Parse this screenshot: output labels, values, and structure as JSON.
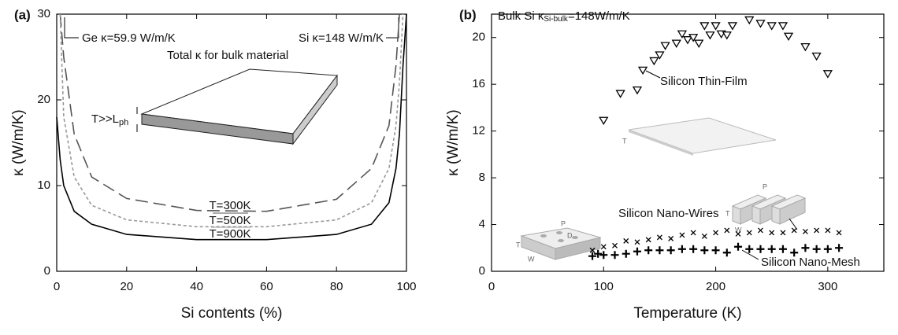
{
  "chart_data": [
    {
      "type": "line",
      "title": "(a)",
      "x_label": "Si contents (%)",
      "y_label": "κ (W/m/K)",
      "x": [
        0,
        1,
        2,
        5,
        10,
        20,
        40,
        60,
        80,
        90,
        95,
        97,
        98,
        99,
        100
      ],
      "series": [
        {
          "name": "T=300K",
          "color": "#555555",
          "style": "long-dash",
          "values": [
            null,
            30,
            25,
            16,
            11,
            8.5,
            7.1,
            7,
            8.4,
            12,
            17,
            24,
            30,
            null,
            null
          ]
        },
        {
          "name": "T=500K",
          "color": "#999999",
          "style": "short-dash",
          "values": [
            null,
            30,
            18,
            11,
            7.7,
            6,
            5.2,
            5.2,
            6,
            8,
            12,
            17,
            22,
            30,
            null
          ]
        },
        {
          "name": "T=900K",
          "color": "#000000",
          "style": "solid",
          "values": [
            18,
            13,
            10,
            7,
            5.5,
            4.3,
            3.7,
            3.7,
            4.3,
            5.5,
            8,
            12,
            16,
            24,
            30
          ]
        }
      ],
      "xlim": [
        0,
        100
      ],
      "ylim": [
        0,
        30
      ],
      "xticks": [
        0,
        20,
        40,
        60,
        80,
        100
      ],
      "yticks": [
        0,
        10,
        20,
        30
      ],
      "grid": false,
      "annotations": [
        "Ge κ=59.9 W/m/K",
        "Si κ=148 W/m/K",
        "Total κ for bulk material",
        {
          "text": "T>>L",
          "subscript": "ph"
        }
      ]
    },
    {
      "type": "scatter",
      "title": "(b)",
      "x_label": "Temperature (K)",
      "y_label": "κ (W/m/K)",
      "series": [
        {
          "name": "Silicon Thin-Film",
          "color": "#000000",
          "marker": "triangle-down",
          "x": [
            100,
            115,
            130,
            135,
            145,
            150,
            155,
            165,
            170,
            175,
            180,
            185,
            190,
            195,
            200,
            205,
            210,
            215,
            230,
            240,
            250,
            260,
            265,
            280,
            290,
            300
          ],
          "y": [
            12.9,
            15.2,
            15.5,
            17.2,
            18,
            18.5,
            19.3,
            19.5,
            20.3,
            19.8,
            20,
            19.5,
            21,
            20.2,
            21,
            20.3,
            20.2,
            21,
            21.5,
            21.2,
            21,
            21,
            20.1,
            19.2,
            18.4,
            16.9
          ]
        },
        {
          "name": "Silicon Nano-Wires",
          "color": "#000000",
          "marker": "x",
          "x": [
            90,
            100,
            110,
            120,
            130,
            140,
            150,
            160,
            170,
            180,
            190,
            200,
            210,
            220,
            230,
            240,
            250,
            260,
            270,
            280,
            290,
            300,
            310
          ],
          "y": [
            1.8,
            2.1,
            2.2,
            2.6,
            2.5,
            2.7,
            2.9,
            2.8,
            3.1,
            3.3,
            3.0,
            3.3,
            3.5,
            3.2,
            3.3,
            3.5,
            3.3,
            3.3,
            3.5,
            3.4,
            3.5,
            3.5,
            3.3
          ]
        },
        {
          "name": "Silicon Nano-Mesh",
          "color": "#000000",
          "marker": "plus",
          "x": [
            90,
            95,
            100,
            110,
            120,
            130,
            140,
            150,
            160,
            170,
            180,
            190,
            200,
            210,
            220,
            230,
            240,
            250,
            260,
            270,
            280,
            290,
            300,
            310
          ],
          "y": [
            1.3,
            1.5,
            1.4,
            1.4,
            1.5,
            1.7,
            1.8,
            1.8,
            1.8,
            1.9,
            1.9,
            1.8,
            1.8,
            1.6,
            2.1,
            1.9,
            1.9,
            1.9,
            1.9,
            1.6,
            2.0,
            1.9,
            1.9,
            2.0
          ]
        }
      ],
      "xlim": [
        0,
        350
      ],
      "ylim": [
        0,
        22
      ],
      "xticks": [
        0,
        100,
        200,
        300
      ],
      "yticks": [
        0,
        4,
        8,
        12,
        16,
        20
      ],
      "grid": false,
      "annotations": [
        {
          "text": "Bulk Si κ",
          "subscript": "Si-bulk",
          "after": "=148W/m/K"
        }
      ],
      "inset_labels": [
        "T",
        "T",
        "P",
        "W",
        "P",
        "D",
        "T",
        "W"
      ]
    }
  ]
}
